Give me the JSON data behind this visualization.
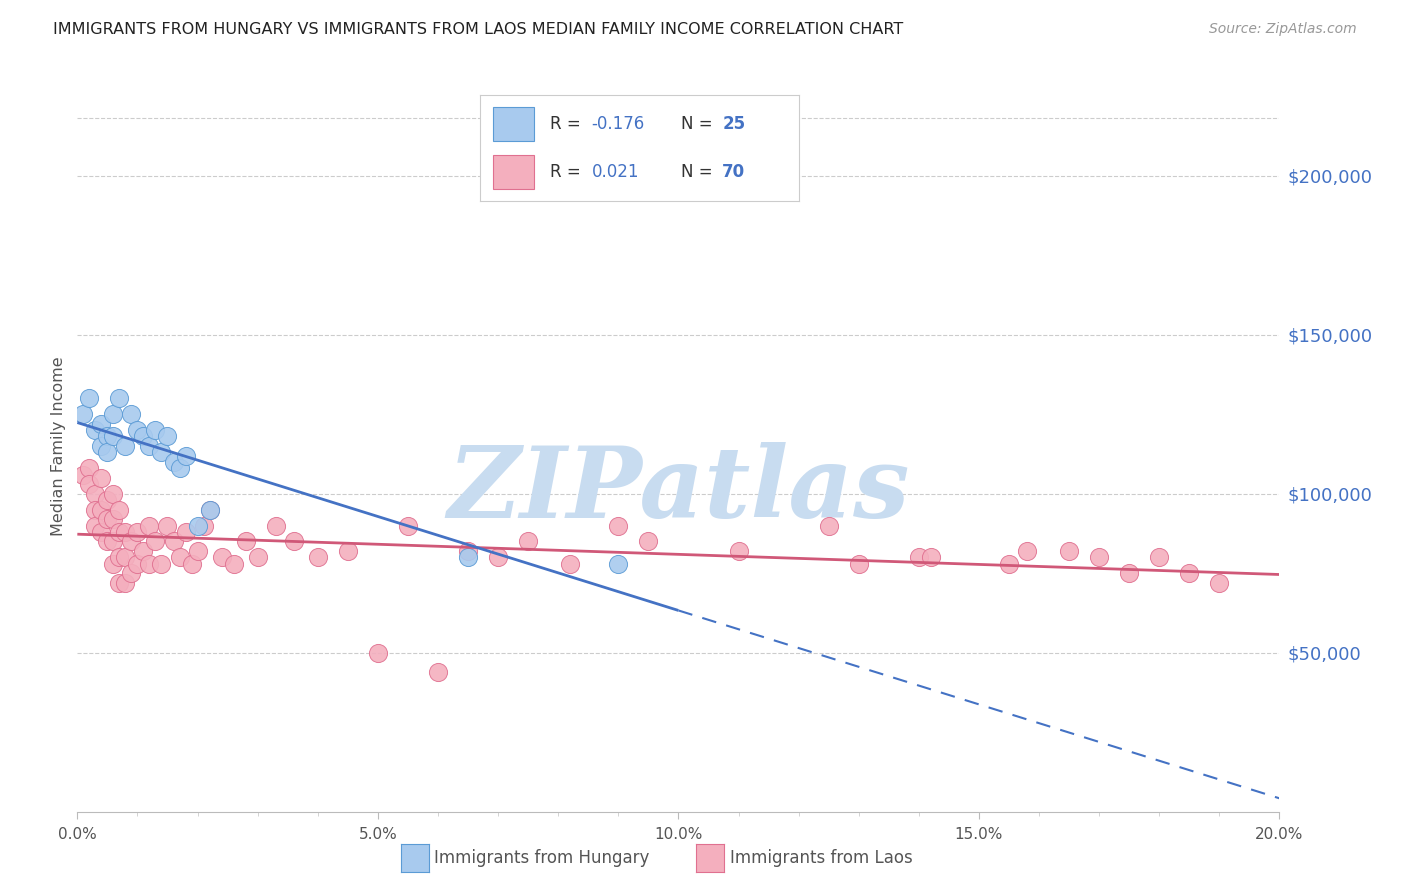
{
  "title": "IMMIGRANTS FROM HUNGARY VS IMMIGRANTS FROM LAOS MEDIAN FAMILY INCOME CORRELATION CHART",
  "source": "Source: ZipAtlas.com",
  "ylabel": "Median Family Income",
  "xlim": [
    0.0,
    0.2
  ],
  "ylim": [
    0,
    230000
  ],
  "ytick_values": [
    50000,
    100000,
    150000,
    200000
  ],
  "ytick_labels": [
    "$50,000",
    "$100,000",
    "$150,000",
    "$200,000"
  ],
  "hungary_color": "#A8CAEE",
  "laos_color": "#F4AFBE",
  "hungary_edge": "#5B9BD5",
  "laos_edge": "#E07090",
  "trend_hungary_color": "#4472C4",
  "trend_laos_color": "#D05878",
  "legend_hungary_R": "-0.176",
  "legend_hungary_N": "25",
  "legend_laos_R": "0.021",
  "legend_laos_N": "70",
  "watermark": "ZIPatlas",
  "watermark_color": "#C8DCF0",
  "background_color": "#FFFFFF",
  "grid_color": "#CCCCCC",
  "title_color": "#222222",
  "right_tick_color": "#4472C4",
  "axis_label_color": "#555555",
  "hungary_x": [
    0.001,
    0.002,
    0.003,
    0.004,
    0.004,
    0.005,
    0.005,
    0.006,
    0.006,
    0.007,
    0.008,
    0.009,
    0.01,
    0.011,
    0.012,
    0.013,
    0.014,
    0.015,
    0.016,
    0.017,
    0.018,
    0.02,
    0.022,
    0.065,
    0.09
  ],
  "hungary_y": [
    125000,
    130000,
    120000,
    122000,
    115000,
    118000,
    113000,
    125000,
    118000,
    130000,
    115000,
    125000,
    120000,
    118000,
    115000,
    120000,
    113000,
    118000,
    110000,
    108000,
    112000,
    90000,
    95000,
    80000,
    78000
  ],
  "laos_x": [
    0.001,
    0.002,
    0.002,
    0.003,
    0.003,
    0.003,
    0.004,
    0.004,
    0.004,
    0.005,
    0.005,
    0.005,
    0.006,
    0.006,
    0.006,
    0.006,
    0.007,
    0.007,
    0.007,
    0.007,
    0.008,
    0.008,
    0.008,
    0.009,
    0.009,
    0.01,
    0.01,
    0.011,
    0.012,
    0.012,
    0.013,
    0.014,
    0.015,
    0.016,
    0.017,
    0.018,
    0.019,
    0.02,
    0.021,
    0.022,
    0.024,
    0.026,
    0.028,
    0.03,
    0.033,
    0.036,
    0.04,
    0.045,
    0.05,
    0.055,
    0.06,
    0.065,
    0.07,
    0.075,
    0.082,
    0.09,
    0.095,
    0.11,
    0.125,
    0.14,
    0.155,
    0.165,
    0.175,
    0.18,
    0.185,
    0.19,
    0.17,
    0.158,
    0.142,
    0.13
  ],
  "laos_y": [
    106000,
    108000,
    103000,
    100000,
    95000,
    90000,
    105000,
    95000,
    88000,
    98000,
    92000,
    85000,
    100000,
    92000,
    85000,
    78000,
    95000,
    88000,
    80000,
    72000,
    88000,
    80000,
    72000,
    85000,
    75000,
    88000,
    78000,
    82000,
    90000,
    78000,
    85000,
    78000,
    90000,
    85000,
    80000,
    88000,
    78000,
    82000,
    90000,
    95000,
    80000,
    78000,
    85000,
    80000,
    90000,
    85000,
    80000,
    82000,
    50000,
    90000,
    44000,
    82000,
    80000,
    85000,
    78000,
    90000,
    85000,
    82000,
    90000,
    80000,
    78000,
    82000,
    75000,
    80000,
    75000,
    72000,
    80000,
    82000,
    80000,
    78000
  ]
}
